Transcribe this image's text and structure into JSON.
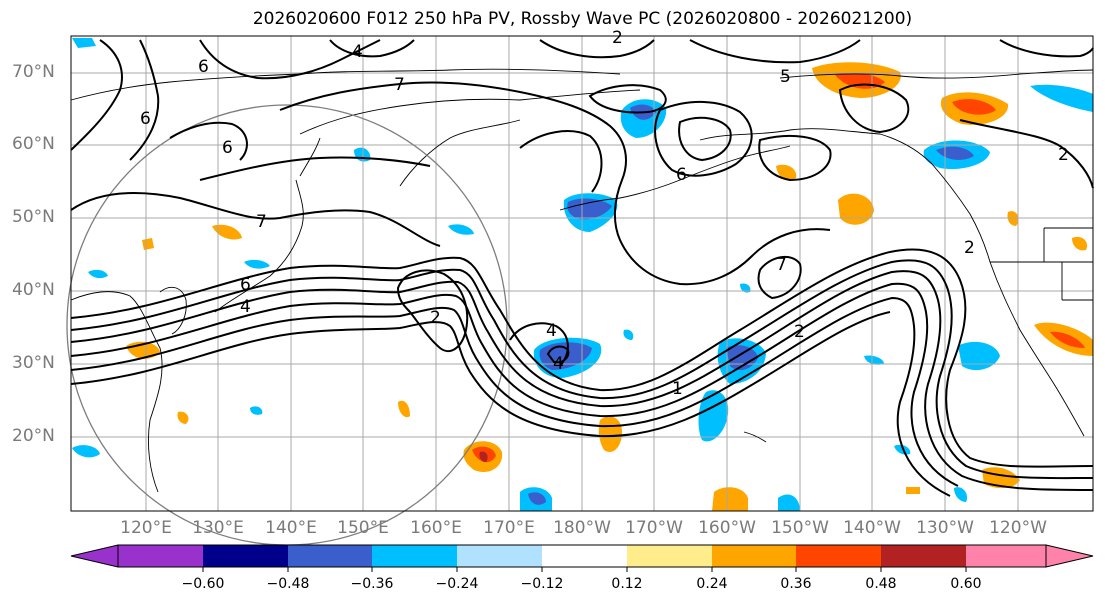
{
  "title": "2026020600 F012 250 hPa PV, Rossby Wave PC (2026020800 - 2026021200)",
  "lat_labels": [
    "70°N",
    "60°N",
    "50°N",
    "40°N",
    "30°N",
    "20°N"
  ],
  "lon_labels": [
    "120°E",
    "130°E",
    "140°E",
    "150°E",
    "160°E",
    "170°E",
    "180°W",
    "170°W",
    "160°W",
    "150°W",
    "140°W",
    "130°W",
    "120°W"
  ],
  "colorbar": {
    "ticks": [
      "−0.60",
      "−0.48",
      "−0.36",
      "−0.24",
      "−0.12",
      "0.12",
      "0.24",
      "0.36",
      "0.48",
      "0.60"
    ],
    "colors": [
      "#9932cc",
      "#00008b",
      "#3a5fcd",
      "#00bfff",
      "#b0e2ff",
      "#ffffff",
      "#ffec8b",
      "#ffa500",
      "#ff4500",
      "#b22222",
      "#ff82ab"
    ]
  },
  "contour_labels": [
    {
      "text": "4"
    },
    {
      "text": "6"
    },
    {
      "text": "6"
    },
    {
      "text": "7"
    },
    {
      "text": "6"
    },
    {
      "text": "7"
    },
    {
      "text": "6"
    },
    {
      "text": "4"
    },
    {
      "text": "2"
    },
    {
      "text": "4"
    },
    {
      "text": "4"
    },
    {
      "text": "1"
    },
    {
      "text": "7"
    },
    {
      "text": "6"
    },
    {
      "text": "2"
    },
    {
      "text": "2"
    },
    {
      "text": "5"
    },
    {
      "text": "2"
    },
    {
      "text": "2"
    }
  ]
}
